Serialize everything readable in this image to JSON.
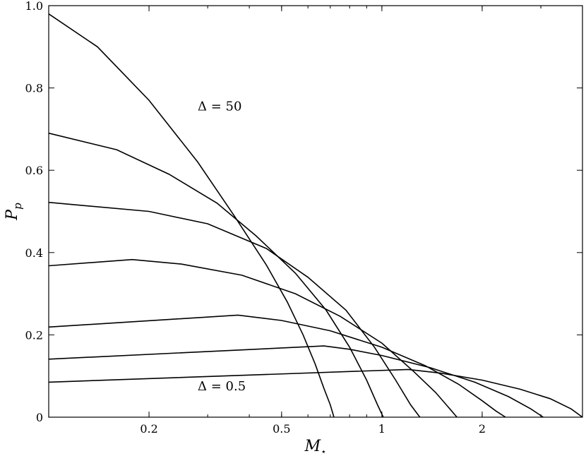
{
  "chart_data": {
    "type": "line",
    "xscale": "log",
    "xlim": [
      0.1,
      4.0
    ],
    "ylim": [
      0,
      1.0
    ],
    "xlabel": "M",
    "xlabel_sub": "⋆",
    "ylabel": "P",
    "ylabel_sub": "p",
    "xticks": [
      {
        "value": 0.2,
        "label": "0.2"
      },
      {
        "value": 0.5,
        "label": "0.5"
      },
      {
        "value": 1,
        "label": "1"
      },
      {
        "value": 2,
        "label": "2"
      }
    ],
    "yticks": [
      {
        "value": 0,
        "label": "0"
      },
      {
        "value": 0.2,
        "label": "0.2"
      },
      {
        "value": 0.4,
        "label": "0.4"
      },
      {
        "value": 0.6,
        "label": "0.6"
      },
      {
        "value": 0.8,
        "label": "0.8"
      },
      {
        "value": 1.0,
        "label": "1.0"
      }
    ],
    "grid": false,
    "series": [
      {
        "x": [
          0.1,
          0.14,
          0.2,
          0.28,
          0.36,
          0.45,
          0.52,
          0.58,
          0.63,
          0.67,
          0.7,
          0.718
        ],
        "y": [
          0.98,
          0.9,
          0.77,
          0.62,
          0.49,
          0.37,
          0.28,
          0.2,
          0.13,
          0.07,
          0.03,
          0.0
        ]
      },
      {
        "x": [
          0.1,
          0.16,
          0.23,
          0.32,
          0.42,
          0.55,
          0.68,
          0.8,
          0.9,
          0.97,
          1.01
        ],
        "y": [
          0.69,
          0.65,
          0.59,
          0.52,
          0.44,
          0.35,
          0.26,
          0.17,
          0.09,
          0.03,
          0.0
        ]
      },
      {
        "x": [
          0.1,
          0.2,
          0.3,
          0.45,
          0.6,
          0.78,
          0.95,
          1.1,
          1.22,
          1.3
        ],
        "y": [
          0.522,
          0.5,
          0.47,
          0.41,
          0.34,
          0.26,
          0.17,
          0.09,
          0.03,
          0.0
        ]
      },
      {
        "x": [
          0.1,
          0.178,
          0.25,
          0.38,
          0.55,
          0.75,
          1.0,
          1.25,
          1.45,
          1.6,
          1.68
        ],
        "y": [
          0.368,
          0.383,
          0.372,
          0.345,
          0.3,
          0.245,
          0.18,
          0.11,
          0.06,
          0.02,
          0.0
        ]
      },
      {
        "x": [
          0.1,
          0.37,
          0.5,
          0.7,
          1.0,
          1.35,
          1.7,
          2.0,
          2.2,
          2.35
        ],
        "y": [
          0.219,
          0.248,
          0.235,
          0.21,
          0.17,
          0.125,
          0.08,
          0.04,
          0.015,
          0.0
        ]
      },
      {
        "x": [
          0.1,
          0.67,
          0.8,
          1.0,
          1.4,
          1.9,
          2.4,
          2.8,
          3.05
        ],
        "y": [
          0.141,
          0.173,
          0.165,
          0.15,
          0.12,
          0.085,
          0.05,
          0.02,
          0.0
        ]
      },
      {
        "x": [
          0.1,
          1.2,
          1.5,
          2.0,
          2.6,
          3.2,
          3.7,
          4.0
        ],
        "y": [
          0.085,
          0.116,
          0.107,
          0.09,
          0.068,
          0.045,
          0.02,
          0.0
        ]
      }
    ],
    "annotations": [
      {
        "text": "Δ = 50",
        "x": 0.28,
        "y": 0.745
      },
      {
        "text": "Δ = 0.5",
        "x": 0.28,
        "y": 0.065
      }
    ]
  }
}
